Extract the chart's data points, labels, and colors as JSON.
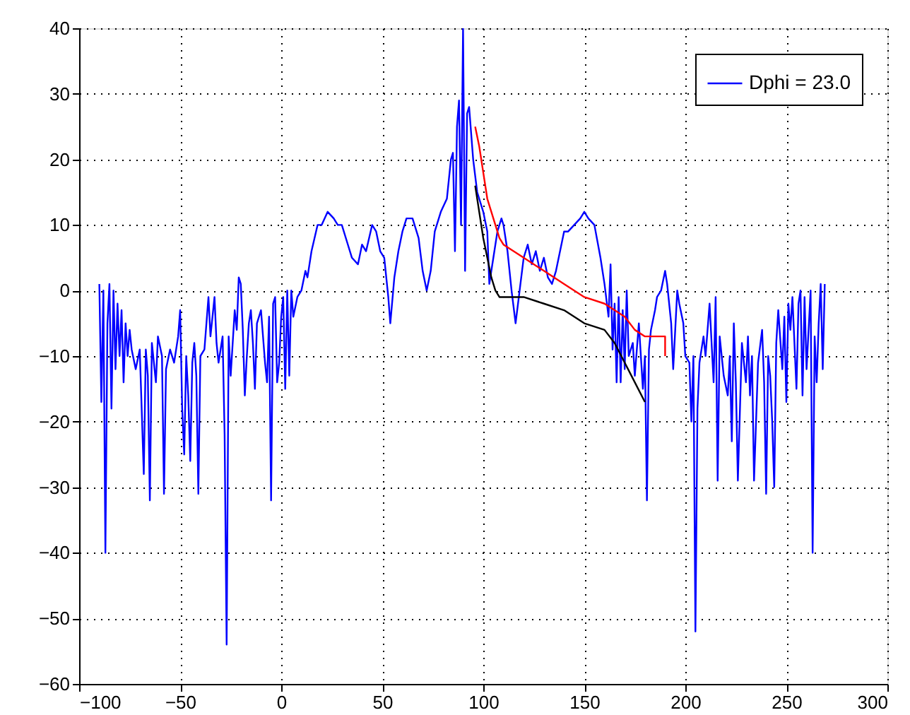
{
  "chart_data": {
    "type": "line",
    "series": [
      {
        "name": "Dphi = 23.0",
        "color": "#0000ff",
        "x": [
          -90,
          -89,
          -88,
          -87,
          -86,
          -85,
          -84,
          -83,
          -82,
          -81,
          -80,
          -79,
          -78,
          -77,
          -76,
          -75,
          -74,
          -72,
          -70,
          -68,
          -67,
          -66,
          -65,
          -64,
          -62,
          -61,
          -59,
          -58,
          -57,
          -55,
          -53,
          -51,
          -50,
          -49,
          -48,
          -47,
          -46,
          -45,
          -44,
          -43,
          -42,
          -41,
          -40,
          -38,
          -36,
          -35,
          -33,
          -32,
          -31,
          -30,
          -29,
          -28,
          -27,
          -26,
          -25,
          -23,
          -22,
          -21,
          -20,
          -19,
          -18,
          -17,
          -16,
          -15,
          -14,
          -13,
          -12,
          -10,
          -9,
          -8,
          -7,
          -6,
          -5,
          -4,
          -3,
          -2,
          -1,
          0,
          1,
          2,
          3,
          4,
          5,
          6,
          8,
          10,
          12,
          13,
          15,
          18,
          20,
          23,
          26,
          28,
          30,
          33,
          35,
          38,
          40,
          42,
          45,
          47,
          49,
          51,
          53,
          54,
          56,
          58,
          60,
          62,
          65,
          68,
          70,
          72,
          74,
          76,
          79,
          82,
          84,
          85,
          86,
          87,
          88,
          89,
          90,
          91,
          92,
          93,
          95,
          97,
          100,
          102,
          103,
          105,
          107,
          109,
          110,
          112,
          114,
          116,
          118,
          120,
          122,
          124,
          126,
          128,
          130,
          132,
          134,
          136,
          138,
          140,
          142,
          145,
          148,
          150,
          152,
          155,
          158,
          160,
          162,
          163,
          164,
          165,
          166,
          167,
          168,
          169,
          170,
          171,
          172,
          174,
          175,
          177,
          179,
          180,
          181,
          182,
          183,
          185,
          186,
          188,
          190,
          191,
          193,
          194,
          196,
          197,
          199,
          200,
          202,
          203,
          204,
          205,
          206,
          207,
          209,
          210,
          212,
          213,
          214,
          215,
          216,
          217,
          219,
          221,
          222,
          223,
          224,
          225,
          226,
          228,
          230,
          231,
          232,
          233,
          234,
          236,
          238,
          239,
          240,
          241,
          242,
          243,
          244,
          245,
          246,
          248,
          249,
          250,
          251,
          252,
          253,
          255,
          256,
          257,
          258,
          259,
          260,
          262,
          263,
          264,
          265,
          266,
          267,
          268,
          269
        ],
        "values": [
          1,
          -17,
          0,
          -40,
          -5,
          1,
          -18,
          0,
          -12,
          -2,
          -10,
          -3,
          -14,
          -5,
          -10,
          -6,
          -9,
          -12,
          -9,
          -28,
          -9,
          -13,
          -32,
          -8,
          -14,
          -7,
          -10,
          -31,
          -12,
          -9,
          -11,
          -7,
          -3,
          -18,
          -25,
          -10,
          -16,
          -26,
          -11,
          -8,
          -13,
          -31,
          -10,
          -9,
          -1,
          -7,
          -1,
          -8,
          -11,
          -9,
          -7,
          -22,
          -54,
          -7,
          -13,
          -3,
          -6,
          2,
          1,
          -6,
          -16,
          -10,
          -5,
          -3,
          -8,
          -15,
          -5,
          -3,
          -7,
          -11,
          -14,
          -4,
          -32,
          -2,
          -1,
          -14,
          -11,
          -4,
          -1,
          -15,
          0,
          -13,
          0,
          -4,
          -1,
          0,
          3,
          2,
          6,
          10,
          10,
          12,
          11,
          10,
          10,
          7,
          5,
          4,
          7,
          6,
          10,
          9,
          6,
          5,
          -1,
          -5,
          2,
          6,
          9,
          11,
          11,
          8,
          3,
          0,
          3,
          9,
          12,
          14,
          20,
          21,
          6,
          25,
          29,
          10,
          40,
          3,
          27,
          28,
          20,
          15,
          12,
          9,
          1,
          5,
          9,
          11,
          10,
          6,
          0,
          -5,
          0,
          5,
          7,
          4,
          6,
          3,
          5,
          2,
          1,
          3,
          6,
          9,
          9,
          10,
          11,
          12,
          11,
          10,
          5,
          1,
          -4,
          4,
          -9,
          -2,
          -14,
          -1,
          -14,
          -3,
          -12,
          0,
          -10,
          -8,
          -13,
          -5,
          -15,
          -10,
          -32,
          -9,
          -6,
          -3,
          -1,
          0,
          3,
          1,
          -5,
          -12,
          0,
          -2,
          -5,
          -10,
          -11,
          -20,
          -10,
          -52,
          -18,
          -11,
          -7,
          -10,
          -2,
          -8,
          -14,
          -1,
          -29,
          -7,
          -13,
          -16,
          -10,
          -23,
          -5,
          -14,
          -29,
          -8,
          -14,
          -7,
          -16,
          -10,
          -29,
          -11,
          -6,
          -14,
          -31,
          -10,
          -13,
          -20,
          -30,
          -8,
          -3,
          -12,
          -4,
          -17,
          -2,
          -6,
          -1,
          -15,
          -2,
          0,
          -16,
          -1,
          -12,
          0,
          -40,
          -7,
          -14,
          -5,
          1,
          -12,
          1
        ]
      },
      {
        "color": "#ff0000",
        "x": [
          96,
          98,
          100,
          102,
          104,
          106,
          108,
          110,
          115,
          120,
          130,
          140,
          150,
          160,
          165,
          170,
          175,
          180,
          185,
          190,
          190
        ],
        "values": [
          25,
          22,
          18,
          14,
          12,
          10,
          8,
          7,
          6,
          5,
          3,
          1,
          -1,
          -2,
          -3,
          -4,
          -6,
          -7,
          -7,
          -7,
          -10
        ]
      },
      {
        "color": "#000000",
        "x": [
          96,
          98,
          100,
          102,
          104,
          106,
          108,
          110,
          115,
          120,
          130,
          140,
          150,
          160,
          165,
          170,
          175,
          180
        ],
        "values": [
          16,
          12,
          8,
          5,
          2,
          0,
          -1,
          -1,
          -1,
          -1,
          -2,
          -3,
          -5,
          -6,
          -8,
          -11,
          -14,
          -17
        ]
      }
    ],
    "xlim": [
      -100,
      300
    ],
    "xticks": [
      -100,
      -50,
      0,
      50,
      100,
      150,
      200,
      250,
      300
    ],
    "ylim": [
      -60,
      40
    ],
    "yticks": [
      -60,
      -50,
      -40,
      -30,
      -20,
      -10,
      0,
      10,
      20,
      30,
      40
    ],
    "grid": true,
    "legend": "top right",
    "line_style": "solid",
    "marker": "none"
  }
}
